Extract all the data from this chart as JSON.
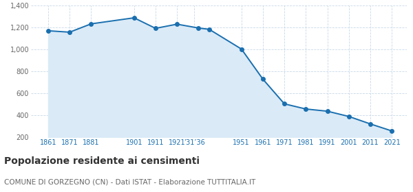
{
  "years": [
    1861,
    1871,
    1881,
    1901,
    1911,
    1921,
    1931,
    1936,
    1951,
    1961,
    1971,
    1981,
    1991,
    2001,
    2011,
    2021
  ],
  "population": [
    1172,
    1159,
    1235,
    1290,
    1194,
    1232,
    1197,
    1185,
    1005,
    730,
    505,
    458,
    438,
    390,
    322,
    258
  ],
  "line_color": "#1a6faf",
  "fill_color": "#daeaf7",
  "marker_color": "#1a6faf",
  "grid_color": "#c8d8e8",
  "background_color": "#ffffff",
  "ylim": [
    200,
    1400
  ],
  "yticks": [
    200,
    400,
    600,
    800,
    1000,
    1200,
    1400
  ],
  "ytick_labels": [
    "200",
    "400",
    "600",
    "800",
    "1,000",
    "1,200",
    "1,400"
  ],
  "xtick_positions": [
    1861,
    1871,
    1881,
    1901,
    1911,
    1921,
    1929,
    1951,
    1961,
    1971,
    1981,
    1991,
    2001,
    2011,
    2021
  ],
  "xtick_labels": [
    "1861",
    "1871",
    "1881",
    "1901",
    "1911",
    "1921",
    "’31’36",
    "1951",
    "1961",
    "1971",
    "1981",
    "1991",
    "2001",
    "2011",
    "2021"
  ],
  "title": "Popolazione residente ai censimenti",
  "subtitle": "COMUNE DI GORZEGNO (CN) - Dati ISTAT - Elaborazione TUTTITALIA.IT",
  "title_fontsize": 10,
  "subtitle_fontsize": 7.5,
  "tick_color_x": "#1a6faf",
  "tick_color_y": "#666666",
  "tick_fontsize": 7,
  "xlim_left": 1853,
  "xlim_right": 2028
}
